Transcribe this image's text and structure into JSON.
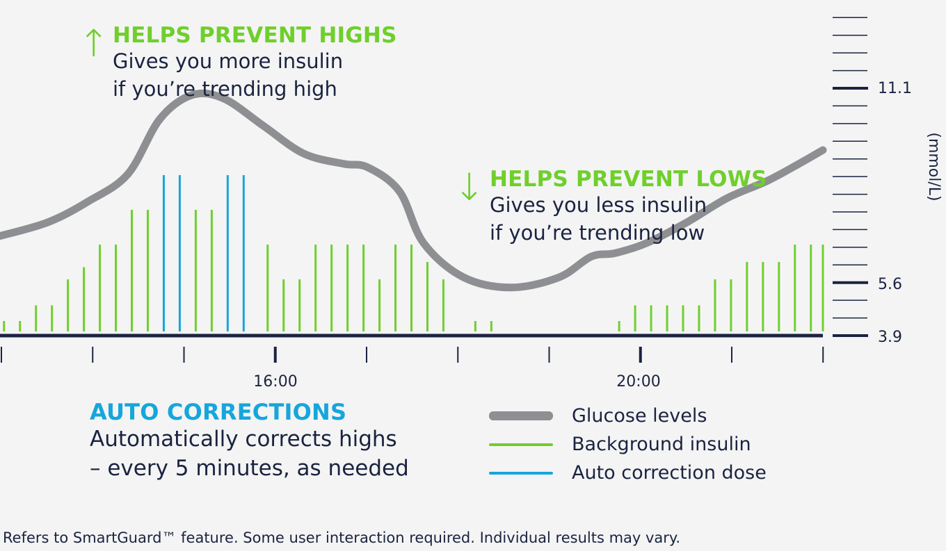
{
  "chart_data": {
    "type": "line",
    "x_ticks": [
      "16:00",
      "20:00"
    ],
    "y_ticks": [
      "11.1",
      "5.6",
      "3.9"
    ],
    "y_unit": "(mmol/L)",
    "y_range": [
      3.9,
      13.6
    ],
    "x_range": [
      12.7,
      23.0
    ],
    "grid": false,
    "legend_position": "bottom-right",
    "series": [
      {
        "name": "Glucose levels",
        "kind": "line",
        "color": "#8e8f92",
        "points": [
          [
            12.7,
            6.8
          ],
          [
            13.3,
            7.2
          ],
          [
            13.8,
            7.8
          ],
          [
            14.3,
            8.6
          ],
          [
            14.7,
            10.2
          ],
          [
            15.1,
            10.9
          ],
          [
            15.5,
            10.8
          ],
          [
            16.0,
            10.0
          ],
          [
            16.5,
            9.2
          ],
          [
            17.0,
            8.9
          ],
          [
            17.3,
            8.8
          ],
          [
            17.7,
            8.1
          ],
          [
            18.0,
            6.6
          ],
          [
            18.5,
            5.6
          ],
          [
            19.1,
            5.3
          ],
          [
            19.7,
            5.6
          ],
          [
            20.1,
            6.2
          ],
          [
            20.4,
            6.3
          ],
          [
            20.8,
            6.6
          ],
          [
            21.3,
            7.2
          ],
          [
            21.8,
            7.9
          ],
          [
            22.3,
            8.4
          ],
          [
            22.7,
            8.9
          ],
          [
            23.0,
            9.3
          ]
        ]
      },
      {
        "name": "Background insulin",
        "kind": "bars",
        "color": "#6fcf2c",
        "doses": [
          [
            12.75,
            0.06
          ],
          [
            12.95,
            0.06
          ],
          [
            13.15,
            0.15
          ],
          [
            13.35,
            0.15
          ],
          [
            13.55,
            0.3
          ],
          [
            13.75,
            0.37
          ],
          [
            13.95,
            0.5
          ],
          [
            14.15,
            0.5
          ],
          [
            14.35,
            0.7
          ],
          [
            14.55,
            0.7
          ],
          [
            15.15,
            0.7
          ],
          [
            15.35,
            0.7
          ],
          [
            16.05,
            0.5
          ],
          [
            16.25,
            0.3
          ],
          [
            16.45,
            0.3
          ],
          [
            16.65,
            0.5
          ],
          [
            16.85,
            0.5
          ],
          [
            17.05,
            0.5
          ],
          [
            17.25,
            0.5
          ],
          [
            17.45,
            0.3
          ],
          [
            17.65,
            0.5
          ],
          [
            17.85,
            0.5
          ],
          [
            18.05,
            0.4
          ],
          [
            18.25,
            0.3
          ],
          [
            18.65,
            0.06
          ],
          [
            18.85,
            0.06
          ],
          [
            20.45,
            0.06
          ],
          [
            20.65,
            0.15
          ],
          [
            20.85,
            0.15
          ],
          [
            21.05,
            0.15
          ],
          [
            21.25,
            0.15
          ],
          [
            21.45,
            0.15
          ],
          [
            21.65,
            0.3
          ],
          [
            21.85,
            0.3
          ],
          [
            22.05,
            0.4
          ],
          [
            22.25,
            0.4
          ],
          [
            22.45,
            0.4
          ],
          [
            22.65,
            0.5
          ],
          [
            22.85,
            0.5
          ],
          [
            23.0,
            0.5
          ]
        ]
      },
      {
        "name": "Auto correction dose",
        "kind": "bars",
        "color": "#16a6dc",
        "doses": [
          [
            14.75,
            0.9
          ],
          [
            14.95,
            0.9
          ],
          [
            15.55,
            0.9
          ],
          [
            15.75,
            0.9
          ]
        ]
      }
    ]
  },
  "callouts": {
    "highs": {
      "arrow": "↑",
      "heading": "HELPS PREVENT HIGHS",
      "line1": "Gives you more insulin",
      "line2": "if you’re trending high"
    },
    "lows": {
      "arrow": "↓",
      "heading": "HELPS PREVENT LOWS",
      "line1": "Gives you less insulin",
      "line2": "if you’re trending low"
    },
    "auto": {
      "heading": "AUTO CORRECTIONS",
      "line1": "Automatically corrects highs",
      "line2": "– every 5 minutes, as needed"
    }
  },
  "legend": [
    {
      "label": "Glucose levels",
      "color": "#8e8f92",
      "style": "thick"
    },
    {
      "label": "Background insulin",
      "color": "#6fcf2c",
      "style": "thin"
    },
    {
      "label": "Auto correction dose",
      "color": "#16a6dc",
      "style": "thin"
    }
  ],
  "footnote": "Refers to SmartGuard™ feature. Some user interaction required. Individual results may vary."
}
